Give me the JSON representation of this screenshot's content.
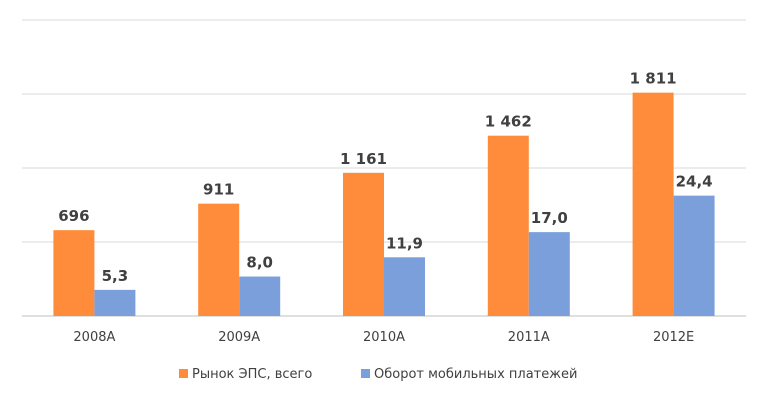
{
  "chart_data": {
    "type": "bar",
    "categories": [
      "2008A",
      "2009A",
      "2010A",
      "2011A",
      "2012E"
    ],
    "series": [
      {
        "name": "Рынок ЭПС, всего",
        "color": "#FF8C3A",
        "values": [
          696,
          911,
          1161,
          1462,
          1811
        ],
        "labels": [
          "696",
          "911",
          "1 161",
          "1 462",
          "1 811"
        ],
        "scale_max": 2400
      },
      {
        "name": "Оборот мобильных платежей",
        "color": "#7B9FDB",
        "values": [
          5.3,
          8.0,
          11.9,
          17.0,
          24.4
        ],
        "labels": [
          "5,3",
          "8,0",
          "11,9",
          "17,0",
          "24,4"
        ],
        "scale_max": 60
      }
    ],
    "grid": true,
    "legend_position": "bottom",
    "title": "",
    "xlabel": "",
    "ylabel": ""
  }
}
